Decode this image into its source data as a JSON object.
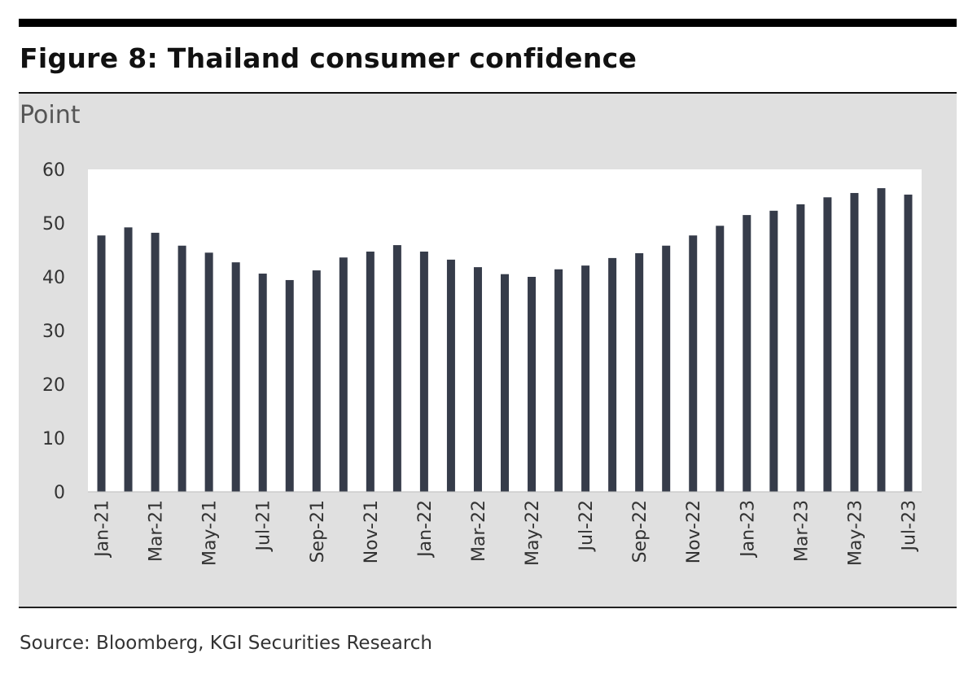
{
  "title": "Figure 8: Thailand consumer confidence",
  "source": "Source: Bloomberg, KGI Securities Research",
  "chart_data": {
    "type": "bar",
    "title": "Figure 8: Thailand consumer confidence",
    "ylabel": "Point",
    "xlabel": "",
    "ylim": [
      0,
      60
    ],
    "yticks": [
      0,
      10,
      20,
      30,
      40,
      50,
      60
    ],
    "grid": false,
    "bar_color": "#363c4a",
    "categories": [
      "Jan-21",
      "Feb-21",
      "Mar-21",
      "Apr-21",
      "May-21",
      "Jun-21",
      "Jul-21",
      "Aug-21",
      "Sep-21",
      "Oct-21",
      "Nov-21",
      "Dec-21",
      "Jan-22",
      "Feb-22",
      "Mar-22",
      "Apr-22",
      "May-22",
      "Jun-22",
      "Jul-22",
      "Aug-22",
      "Sep-22",
      "Oct-22",
      "Nov-22",
      "Dec-22",
      "Jan-23",
      "Feb-23",
      "Mar-23",
      "Apr-23",
      "May-23",
      "Jun-23",
      "Jul-23"
    ],
    "xtick_labels": [
      "Jan-21",
      "Mar-21",
      "May-21",
      "Jul-21",
      "Sep-21",
      "Nov-21",
      "Jan-22",
      "Mar-22",
      "May-22",
      "Jul-22",
      "Sep-22",
      "Nov-22",
      "Jan-23",
      "Mar-23",
      "May-23",
      "Jul-23"
    ],
    "values": [
      47.7,
      49.2,
      48.2,
      45.8,
      44.5,
      42.7,
      40.6,
      39.4,
      41.2,
      43.6,
      44.7,
      45.9,
      44.7,
      43.2,
      41.8,
      40.5,
      40.0,
      41.4,
      42.1,
      43.5,
      44.4,
      45.8,
      47.7,
      49.5,
      51.5,
      52.3,
      53.5,
      54.8,
      55.6,
      56.5,
      55.3
    ]
  }
}
